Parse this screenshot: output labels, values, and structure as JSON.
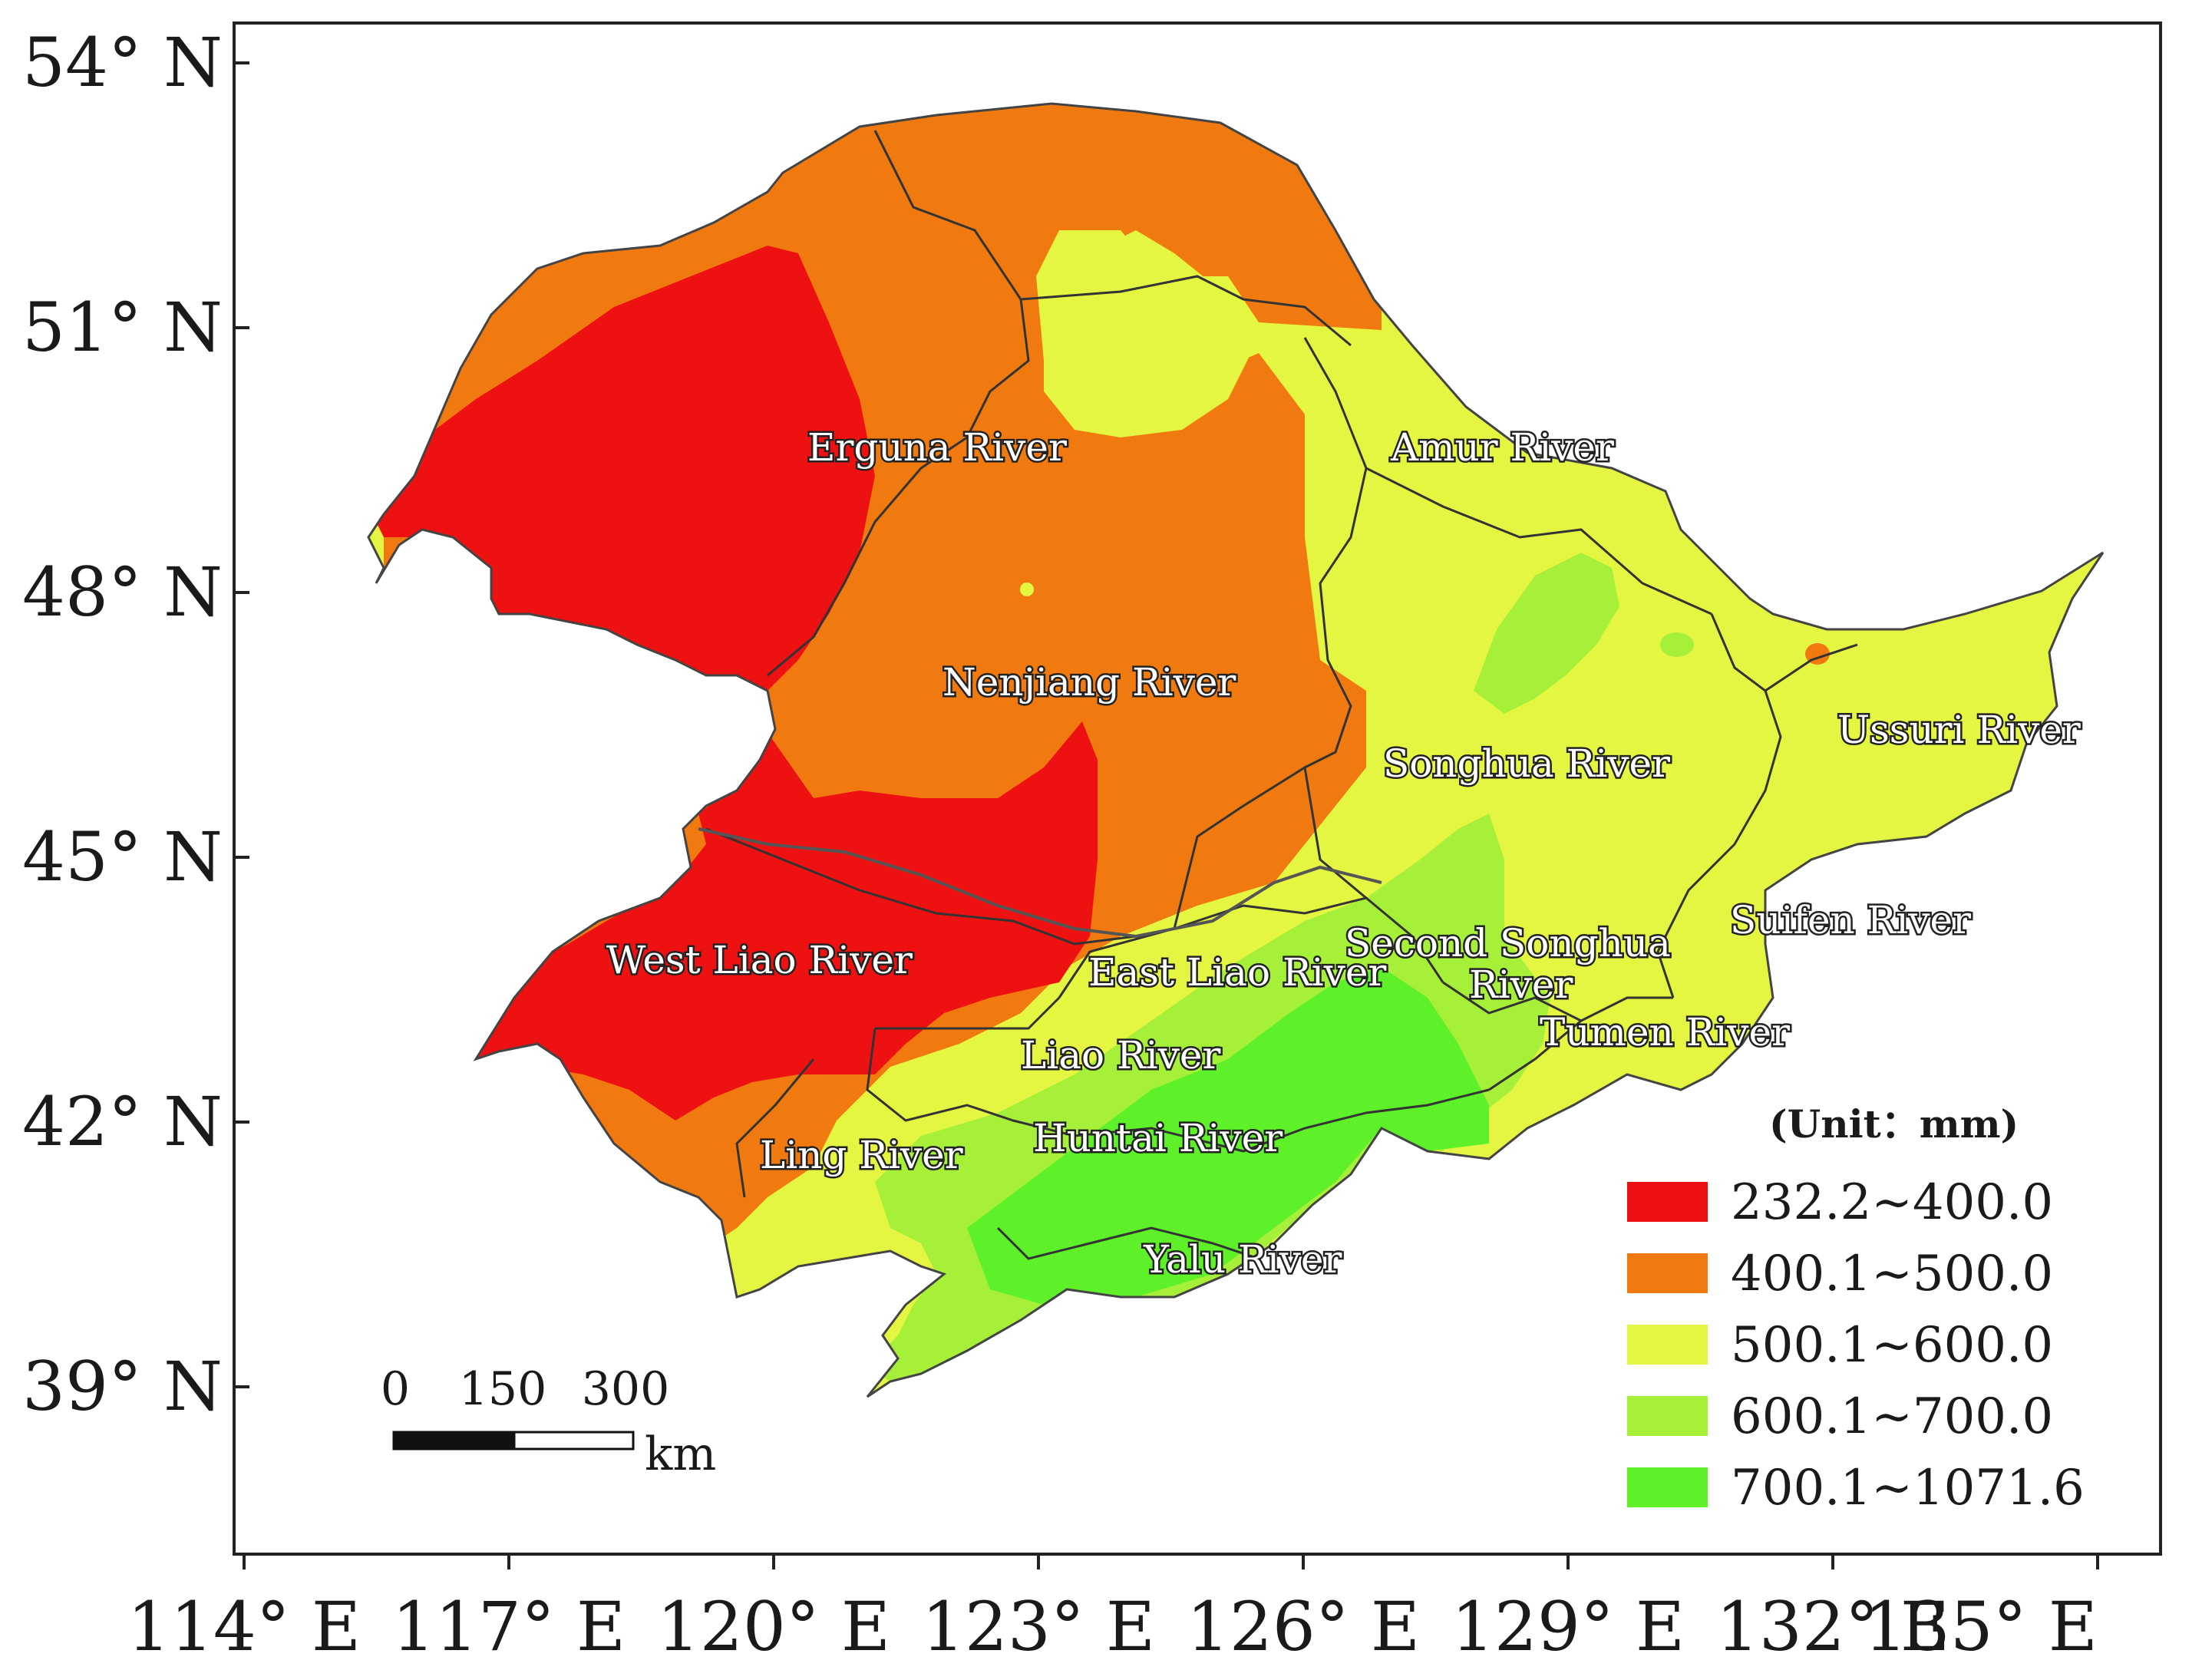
{
  "map": {
    "y_ticks": [
      "54° N",
      "51° N",
      "48° N",
      "45° N",
      "42° N",
      "39° N"
    ],
    "x_ticks": [
      "114° E",
      "117° E",
      "120° E",
      "123° E",
      "126° E",
      "129° E",
      "132° E",
      "135° E"
    ],
    "rivers": {
      "erguna": "Erguna River",
      "amur": "Amur River",
      "nenjiang": "Nenjiang River",
      "songhua": "Songhua River",
      "ussuri": "Ussuri River",
      "suifen": "Suifen River",
      "west_liao": "West Liao River",
      "east_liao": "East Liao River",
      "second_songhua_1": "Second Songhua",
      "second_songhua_2": "River",
      "tumen": "Tumen River",
      "liao": "Liao River",
      "ling": "Ling River",
      "huntai": "Huntai River",
      "yalu": "Yalu River"
    },
    "legend": {
      "title": "(Unit：mm)",
      "items": [
        {
          "label": "232.2~400.0",
          "color": "#ee1111"
        },
        {
          "label": "400.1~500.0",
          "color": "#f07a10"
        },
        {
          "label": "500.1~600.0",
          "color": "#e4f542"
        },
        {
          "label": "600.1~700.0",
          "color": "#a6f03a"
        },
        {
          "label": "700.1~1071.6",
          "color": "#5ef028"
        }
      ]
    },
    "scale_bar": {
      "ticks": [
        "0",
        "150",
        "300"
      ],
      "unit": "km"
    }
  }
}
